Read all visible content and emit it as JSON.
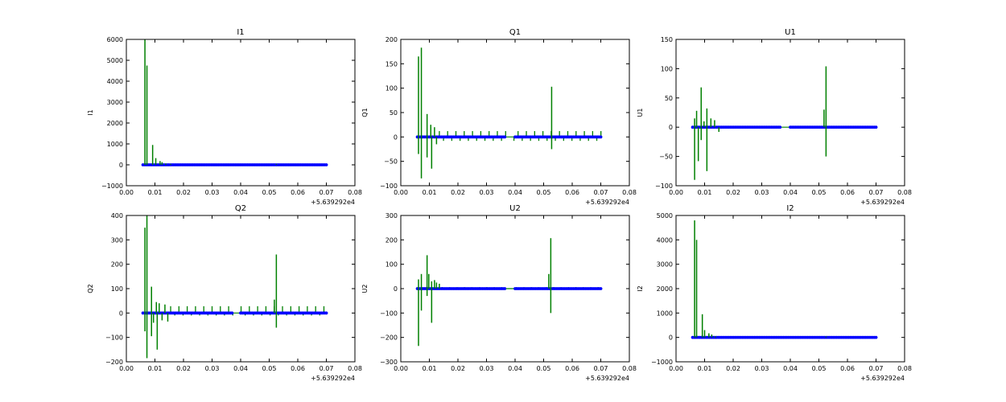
{
  "colors": {
    "spike": "#008000",
    "marker": "#0000ff",
    "axis": "#000000"
  },
  "chart_data": [
    {
      "type": "line",
      "title": "I1",
      "xlabel": "",
      "ylabel": "I1",
      "x_offset_label": "+5.639292e4",
      "xlim": [
        0,
        0.08
      ],
      "ylim": [
        -1000,
        6000
      ],
      "xticks": [
        "0.00",
        "0.01",
        "0.02",
        "0.03",
        "0.04",
        "0.05",
        "0.06",
        "0.07",
        "0.08"
      ],
      "yticks": [
        "−1000",
        "0",
        "1000",
        "2000",
        "3000",
        "4000",
        "5000",
        "6000"
      ],
      "ytick_values": [
        -1000,
        0,
        1000,
        2000,
        3000,
        4000,
        5000,
        6000
      ],
      "x_range": [
        0.0055,
        0.0705
      ],
      "baseline": 0,
      "marker_size": 3,
      "spikes": [
        [
          0.0065,
          6000
        ],
        [
          0.0072,
          4750
        ],
        [
          0.0092,
          950
        ],
        [
          0.0103,
          320
        ],
        [
          0.0118,
          180
        ],
        [
          0.0125,
          130
        ],
        [
          0.0138,
          60
        ],
        [
          0.0155,
          40
        ],
        [
          0.0525,
          40
        ]
      ]
    },
    {
      "type": "line",
      "title": "Q1",
      "xlabel": "",
      "ylabel": "Q1",
      "x_offset_label": "+5.639292e4",
      "xlim": [
        0,
        0.08
      ],
      "ylim": [
        -100,
        200
      ],
      "xticks": [
        "0.00",
        "0.01",
        "0.02",
        "0.03",
        "0.04",
        "0.05",
        "0.06",
        "0.07",
        "0.08"
      ],
      "yticks": [
        "−100",
        "−50",
        "0",
        "50",
        "100",
        "150",
        "200"
      ],
      "ytick_values": [
        -100,
        -50,
        0,
        50,
        100,
        150,
        200
      ],
      "x_range": [
        0.0055,
        0.0705
      ],
      "baseline": 0,
      "marker_size": 3,
      "spikes": [
        [
          0.0062,
          165
        ],
        [
          0.0062,
          -35
        ],
        [
          0.0072,
          183
        ],
        [
          0.0072,
          -85
        ],
        [
          0.0092,
          47
        ],
        [
          0.0092,
          -42
        ],
        [
          0.0105,
          25
        ],
        [
          0.0108,
          -65
        ],
        [
          0.0118,
          20
        ],
        [
          0.0125,
          -15
        ],
        [
          0.0528,
          103
        ],
        [
          0.0528,
          -25
        ]
      ],
      "comb": {
        "start": 0.0135,
        "step": 0.00145,
        "end": 0.0702,
        "up": 12,
        "down": -8,
        "gap": [
          0.037,
          0.0395
        ]
      }
    },
    {
      "type": "line",
      "title": "U1",
      "xlabel": "",
      "ylabel": "U1",
      "x_offset_label": "+5.639292e4",
      "xlim": [
        0,
        0.08
      ],
      "ylim": [
        -100,
        150
      ],
      "xticks": [
        "0.00",
        "0.01",
        "0.02",
        "0.03",
        "0.04",
        "0.05",
        "0.06",
        "0.07",
        "0.08"
      ],
      "yticks": [
        "−100",
        "−50",
        "0",
        "50",
        "100",
        "150"
      ],
      "ytick_values": [
        -100,
        -50,
        0,
        50,
        100,
        150
      ],
      "x_range": [
        0.0055,
        0.0705
      ],
      "baseline": 0,
      "marker_size": 3,
      "spikes": [
        [
          0.0065,
          15
        ],
        [
          0.0065,
          -90
        ],
        [
          0.0072,
          28
        ],
        [
          0.0078,
          -58
        ],
        [
          0.0088,
          68
        ],
        [
          0.0088,
          -22
        ],
        [
          0.0098,
          10
        ],
        [
          0.0108,
          32
        ],
        [
          0.0108,
          -75
        ],
        [
          0.0122,
          15
        ],
        [
          0.0135,
          12
        ],
        [
          0.015,
          -8
        ],
        [
          0.0518,
          30
        ],
        [
          0.0525,
          104
        ],
        [
          0.0525,
          -50
        ]
      ],
      "comb": {
        "start": 0.0155,
        "step": 0.0013,
        "end": 0.0702,
        "up": 2,
        "down": -2,
        "gap": [
          0.037,
          0.0395
        ]
      }
    },
    {
      "type": "line",
      "title": "Q2",
      "xlabel": "",
      "ylabel": "Q2",
      "x_offset_label": "+5.639292e4",
      "xlim": [
        0,
        0.08
      ],
      "ylim": [
        -200,
        400
      ],
      "xticks": [
        "0.00",
        "0.01",
        "0.02",
        "0.03",
        "0.04",
        "0.05",
        "0.06",
        "0.07",
        "0.08"
      ],
      "yticks": [
        "−200",
        "−100",
        "0",
        "100",
        "200",
        "300",
        "400"
      ],
      "ytick_values": [
        -200,
        -100,
        0,
        100,
        200,
        300,
        400
      ],
      "x_range": [
        0.0055,
        0.0705
      ],
      "baseline": 0,
      "marker_size": 3,
      "spikes": [
        [
          0.0065,
          350
        ],
        [
          0.0065,
          -75
        ],
        [
          0.0072,
          400
        ],
        [
          0.0072,
          -185
        ],
        [
          0.0088,
          108
        ],
        [
          0.0088,
          -95
        ],
        [
          0.0095,
          -40
        ],
        [
          0.0105,
          45
        ],
        [
          0.0108,
          -150
        ],
        [
          0.0115,
          40
        ],
        [
          0.0125,
          -30
        ],
        [
          0.0135,
          35
        ],
        [
          0.0145,
          -35
        ],
        [
          0.0518,
          55
        ],
        [
          0.0525,
          240
        ],
        [
          0.0525,
          -60
        ]
      ],
      "comb": {
        "start": 0.0155,
        "step": 0.00145,
        "end": 0.0702,
        "up": 28,
        "down": -10,
        "gap": [
          0.0375,
          0.0395
        ]
      }
    },
    {
      "type": "line",
      "title": "U2",
      "xlabel": "",
      "ylabel": "U2",
      "x_offset_label": "+5.639292e4",
      "xlim": [
        0,
        0.08
      ],
      "ylim": [
        -300,
        300
      ],
      "xticks": [
        "0.00",
        "0.01",
        "0.02",
        "0.03",
        "0.04",
        "0.05",
        "0.06",
        "0.07",
        "0.08"
      ],
      "yticks": [
        "−300",
        "−200",
        "−100",
        "0",
        "100",
        "200",
        "300"
      ],
      "ytick_values": [
        -300,
        -200,
        -100,
        0,
        100,
        200,
        300
      ],
      "x_range": [
        0.0055,
        0.0705
      ],
      "baseline": 0,
      "marker_size": 3,
      "spikes": [
        [
          0.0062,
          38
        ],
        [
          0.0062,
          -235
        ],
        [
          0.0072,
          60
        ],
        [
          0.0072,
          -90
        ],
        [
          0.0092,
          137
        ],
        [
          0.0092,
          -30
        ],
        [
          0.0098,
          60
        ],
        [
          0.0108,
          30
        ],
        [
          0.0108,
          -140
        ],
        [
          0.0118,
          35
        ],
        [
          0.0125,
          25
        ],
        [
          0.0135,
          20
        ],
        [
          0.0518,
          60
        ],
        [
          0.0525,
          207
        ],
        [
          0.0525,
          -100
        ]
      ],
      "comb": {
        "start": 0.0145,
        "step": 0.0013,
        "end": 0.0702,
        "up": 6,
        "down": -4,
        "gap": [
          0.037,
          0.0395
        ]
      }
    },
    {
      "type": "line",
      "title": "I2",
      "xlabel": "",
      "ylabel": "I2",
      "x_offset_label": "+5.639292e4",
      "xlim": [
        0,
        0.08
      ],
      "ylim": [
        -1000,
        5000
      ],
      "xticks": [
        "0.00",
        "0.01",
        "0.02",
        "0.03",
        "0.04",
        "0.05",
        "0.06",
        "0.07",
        "0.08"
      ],
      "yticks": [
        "−1000",
        "0",
        "1000",
        "2000",
        "3000",
        "4000",
        "5000"
      ],
      "ytick_values": [
        -1000,
        0,
        1000,
        2000,
        3000,
        4000,
        5000
      ],
      "x_range": [
        0.0055,
        0.0705
      ],
      "baseline": 0,
      "marker_size": 3,
      "spikes": [
        [
          0.0065,
          4800
        ],
        [
          0.0072,
          4000
        ],
        [
          0.0092,
          950
        ],
        [
          0.01,
          300
        ],
        [
          0.0115,
          170
        ],
        [
          0.0125,
          120
        ],
        [
          0.0138,
          50
        ],
        [
          0.0525,
          40
        ]
      ]
    }
  ]
}
